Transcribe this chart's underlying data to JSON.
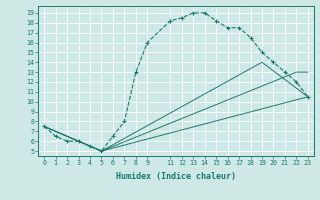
{
  "xlabel": "Humidex (Indice chaleur)",
  "ylabel": "",
  "bg_color": "#cde8e5",
  "grid_color": "#b0d8d4",
  "line_color": "#1a7a6e",
  "xlim": [
    -0.5,
    23.5
  ],
  "ylim": [
    4.5,
    19.7
  ],
  "xticks": [
    0,
    1,
    2,
    3,
    4,
    5,
    6,
    7,
    8,
    9,
    11,
    12,
    13,
    14,
    15,
    16,
    17,
    18,
    19,
    20,
    21,
    22,
    23
  ],
  "yticks": [
    5,
    6,
    7,
    8,
    9,
    10,
    11,
    12,
    13,
    14,
    15,
    16,
    17,
    18,
    19
  ],
  "series": [
    {
      "x": [
        0,
        1,
        2,
        3,
        4,
        5,
        6,
        7,
        8,
        9,
        11,
        12,
        13,
        14,
        15,
        16,
        17,
        18,
        19,
        20,
        21,
        22,
        23
      ],
      "y": [
        7.5,
        6.5,
        6.0,
        6.0,
        5.5,
        5.0,
        6.5,
        8.0,
        13.0,
        16.0,
        18.2,
        18.5,
        19.0,
        19.0,
        18.2,
        17.5,
        17.5,
        16.5,
        15.0,
        14.0,
        13.0,
        12.0,
        10.5
      ],
      "marker": "+",
      "linestyle": "--"
    },
    {
      "x": [
        0,
        5,
        23
      ],
      "y": [
        7.5,
        5.0,
        10.5
      ],
      "marker": null,
      "linestyle": "-"
    },
    {
      "x": [
        0,
        5,
        22,
        23
      ],
      "y": [
        7.5,
        5.0,
        13.0,
        13.0
      ],
      "marker": null,
      "linestyle": "-"
    },
    {
      "x": [
        0,
        5,
        19,
        23
      ],
      "y": [
        7.5,
        5.0,
        14.0,
        10.5
      ],
      "marker": null,
      "linestyle": "-"
    }
  ]
}
